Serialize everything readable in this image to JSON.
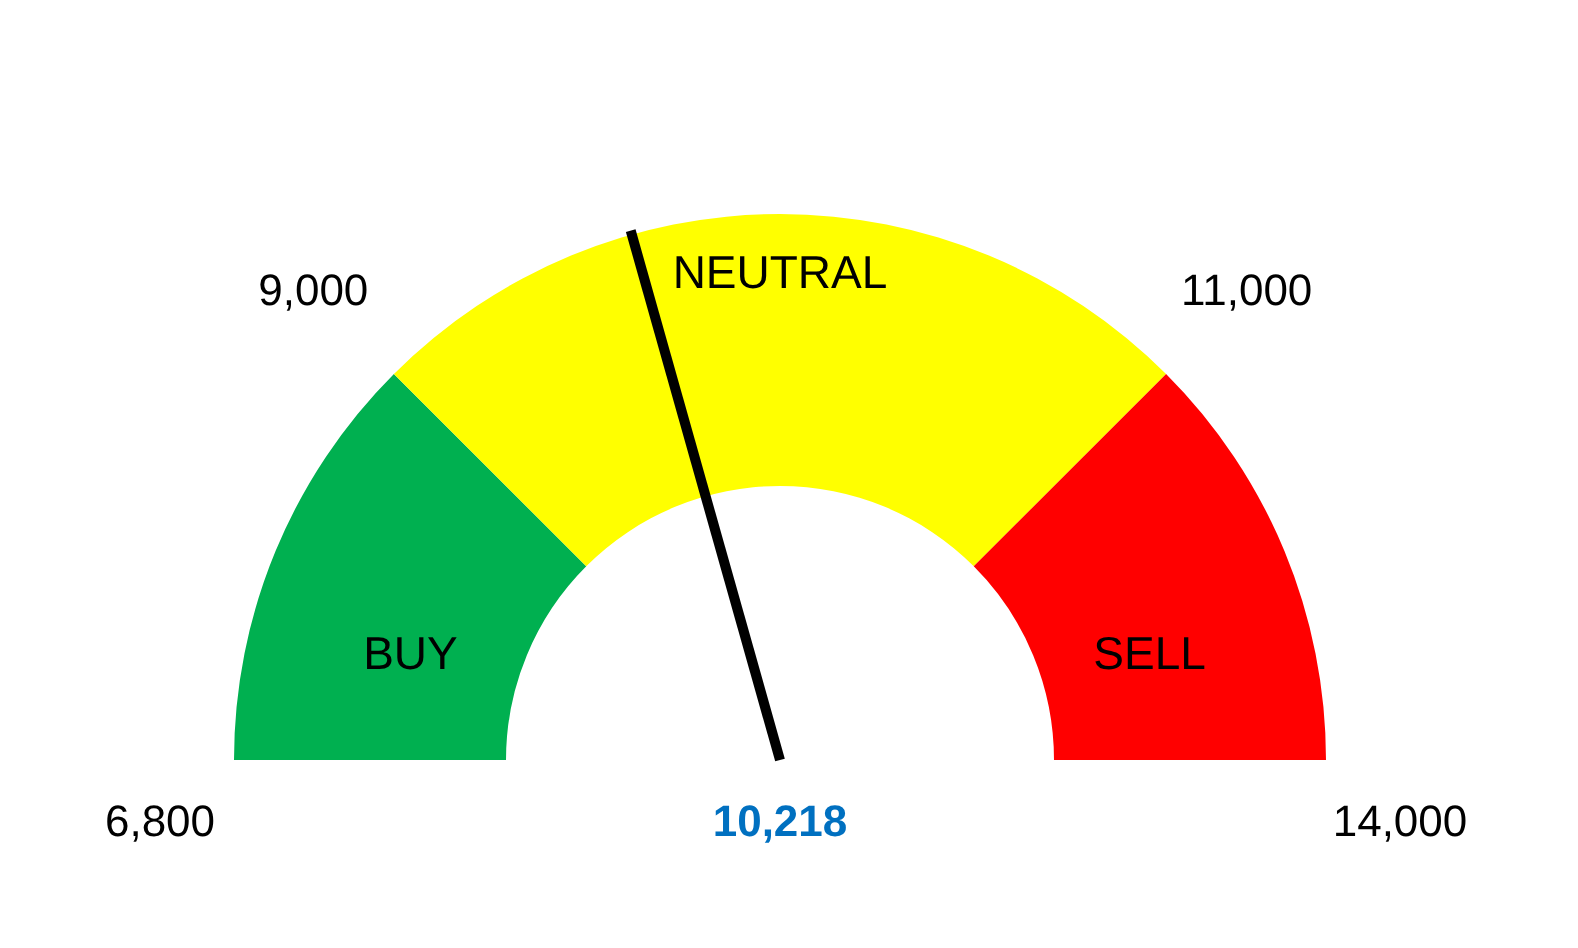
{
  "chart_data": {
    "type": "donut",
    "categories": [
      "BUY",
      "NEUTRAL",
      "SELL"
    ],
    "values": [
      25,
      50,
      25
    ],
    "colors": [
      "#00b050",
      "#ffff00",
      "#ff0000"
    ],
    "needle": "NEUTRAL",
    "annotations": [
      "6,800",
      "9,000",
      "11,000",
      "14,000",
      "10,218"
    ]
  }
}
